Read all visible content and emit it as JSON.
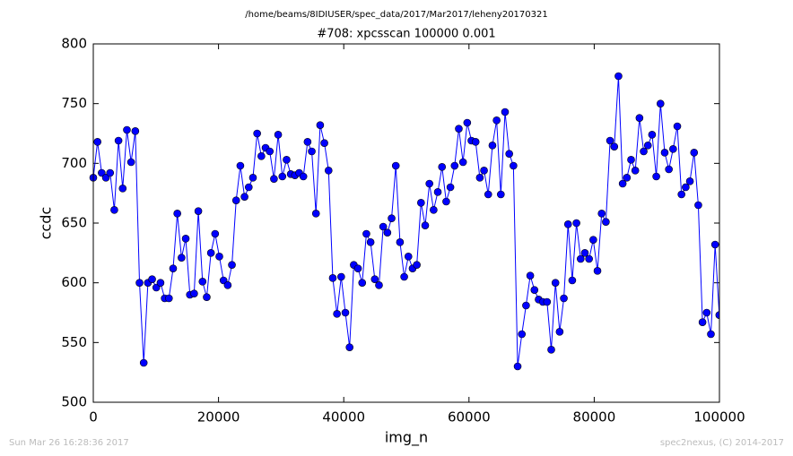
{
  "chart_data": {
    "type": "line",
    "suptitle": "/home/beams/8IDIUSER/spec_data/2017/Mar2017/leheny20170321",
    "title": "#708: xpcsscan 100000 0.001",
    "xlabel": "img_n",
    "ylabel": "ccdc",
    "footer_left": "Sun Mar 26 16:28:36 2017",
    "footer_right": "spec2nexus, (C) 2014-2017",
    "xlim": [
      0,
      100000
    ],
    "xticks": [
      0,
      20000,
      40000,
      60000,
      80000,
      100000
    ],
    "ylim": [
      500,
      800
    ],
    "yticks": [
      500,
      550,
      600,
      650,
      700,
      750,
      800
    ],
    "grid": false,
    "x": [
      0,
      671,
      1342,
      2013,
      2684,
      3355,
      4026,
      4697,
      5368,
      6039,
      6710,
      7381,
      8052,
      8723,
      9394,
      10065,
      10736,
      11407,
      12078,
      12749,
      13420,
      14091,
      14762,
      15433,
      16104,
      16775,
      17446,
      18117,
      18788,
      19459,
      20130,
      20801,
      21472,
      22143,
      22814,
      23485,
      24156,
      24827,
      25498,
      26169,
      26840,
      27511,
      28182,
      28853,
      29524,
      30195,
      30866,
      31537,
      32208,
      32879,
      33550,
      34221,
      34892,
      35563,
      36234,
      36905,
      37576,
      38247,
      38918,
      39589,
      40260,
      40931,
      41602,
      42273,
      42944,
      43615,
      44286,
      44957,
      45628,
      46299,
      46970,
      47641,
      48312,
      48983,
      49654,
      50325,
      50996,
      51667,
      52338,
      53009,
      53680,
      54351,
      55022,
      55693,
      56364,
      57035,
      57706,
      58377,
      59048,
      59719,
      60390,
      61061,
      61732,
      62403,
      63074,
      63745,
      64416,
      65087,
      65758,
      66429,
      67100,
      67771,
      68442,
      69113,
      69784,
      70455,
      71126,
      71797,
      72468,
      73139,
      73810,
      74481,
      75152,
      75823,
      76494,
      77165,
      77836,
      78507,
      79178,
      79849,
      80520,
      81191,
      81862,
      82533,
      83204,
      83875,
      84546,
      85217,
      85888,
      86559,
      87230,
      87901,
      88572,
      89243,
      89914,
      90585,
      91256,
      91927,
      92598,
      93269,
      93940,
      94611,
      95282,
      95953,
      96624,
      97295,
      97966,
      98637,
      99308,
      99979
    ],
    "series": [
      {
        "color": "#0000ff",
        "values": [
          688,
          718,
          692,
          688,
          692,
          661,
          719,
          679,
          728,
          701,
          727,
          600,
          533,
          600,
          603,
          596,
          600,
          587,
          587,
          612,
          658,
          621,
          637,
          590,
          591,
          660,
          601,
          588,
          625,
          641,
          622,
          602,
          598,
          615,
          669,
          698,
          672,
          680,
          688,
          725,
          706,
          713,
          710,
          687,
          724,
          689,
          703,
          691,
          690,
          692,
          689,
          718,
          710,
          658,
          732,
          717,
          694,
          604,
          574,
          605,
          575,
          546,
          615,
          612,
          600,
          641,
          634,
          603,
          598,
          647,
          642,
          654,
          698,
          634,
          605,
          622,
          612,
          615,
          667,
          648,
          683,
          661,
          676,
          697,
          668,
          680,
          698,
          729,
          701,
          734,
          719,
          718,
          688,
          694,
          674,
          715,
          736,
          674,
          743,
          708,
          698,
          530,
          557,
          581,
          606,
          594,
          586,
          584,
          584,
          544,
          600,
          559,
          587,
          649,
          602,
          650,
          620,
          625,
          620,
          636,
          610,
          658,
          651,
          719,
          714,
          773,
          683,
          688,
          703,
          694,
          738,
          710,
          715,
          724,
          689,
          750,
          709,
          695,
          712,
          731,
          674,
          680,
          685,
          709,
          665,
          567,
          575,
          557,
          632,
          573
        ]
      }
    ]
  }
}
